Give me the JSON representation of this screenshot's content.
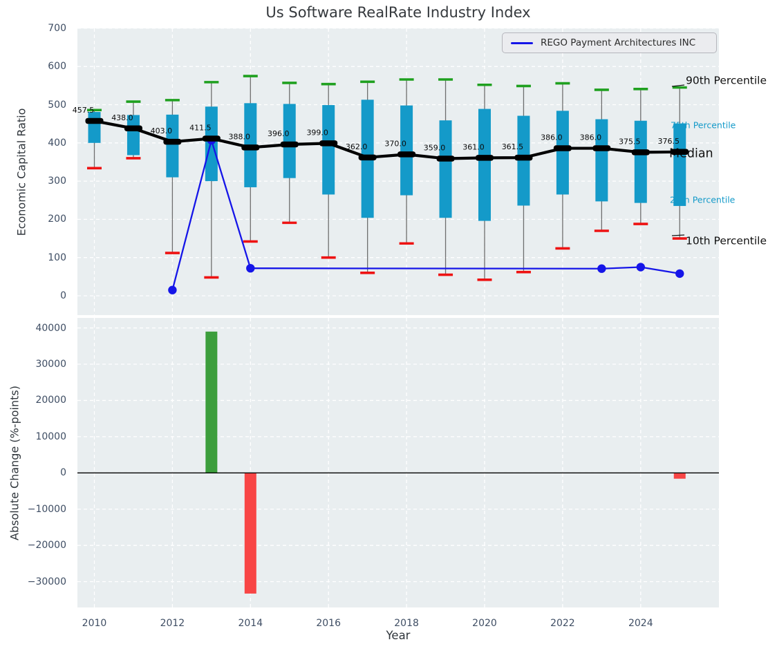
{
  "title": "Us Software RealRate Industry Index",
  "legend": {
    "label": "REGO Payment Architectures INC"
  },
  "colors": {
    "box": "#149ac9",
    "cap_high": "#1fa01f",
    "cap_low": "#ee1212",
    "whisker": "#6e6e6e",
    "median_line": "#000000",
    "company_line": "#1515e8",
    "bar_positive": "#3c9e3c",
    "bar_negative": "#f84545",
    "panel_bg": "#e9eef0",
    "grid": "#ffffff",
    "tick_text": "#3e4d63",
    "dark_text": "#111111",
    "zero_line": "#000000"
  },
  "chart_data": [
    {
      "type": "box",
      "title": "Us Software RealRate Industry Index",
      "ylabel": "Economic Capital Ratio",
      "ylim": [
        -50,
        700
      ],
      "ytick_labels": [
        "0",
        "100",
        "200",
        "300",
        "400",
        "500",
        "600",
        "700"
      ],
      "yticks": [
        0,
        100,
        200,
        300,
        400,
        500,
        600,
        700
      ],
      "xticks": [
        2010,
        2012,
        2014,
        2016,
        2018,
        2020,
        2022,
        2024
      ],
      "xtick_labels": [
        "2010",
        "2012",
        "2014",
        "2016",
        "2018",
        "2020",
        "2022",
        "2024"
      ],
      "grid": true,
      "years": [
        2010,
        2011,
        2012,
        2013,
        2014,
        2015,
        2016,
        2017,
        2018,
        2019,
        2020,
        2021,
        2022,
        2023,
        2024,
        2025
      ],
      "p90": [
        486,
        508,
        512,
        559,
        575,
        557,
        554,
        560,
        566,
        566,
        552,
        549,
        556,
        539,
        541,
        545
      ],
      "p75": [
        481,
        473,
        474,
        495,
        504,
        502,
        499,
        513,
        498,
        459,
        489,
        471,
        484,
        462,
        458,
        451
      ],
      "median": [
        457.5,
        438.0,
        403.0,
        411.5,
        388.0,
        396.0,
        399.0,
        362.0,
        370.0,
        359.0,
        361.0,
        361.5,
        386.0,
        386.0,
        375.5,
        376.5
      ],
      "p25": [
        400,
        368,
        310,
        300,
        284,
        308,
        265,
        204,
        263,
        204,
        196,
        236,
        265,
        247,
        243,
        235
      ],
      "p10": [
        334,
        360,
        112,
        48,
        142,
        191,
        100,
        60,
        137,
        55,
        42,
        62,
        124,
        170,
        188,
        150
      ],
      "median_labels": [
        "457.5",
        "438.0",
        "403.0",
        "411.5",
        "388.0",
        "396.0",
        "399.0",
        "362.0",
        "370.0",
        "359.0",
        "361.0",
        "361.5",
        "386.0",
        "386.0",
        "375.5",
        "376.5"
      ],
      "line_series": {
        "name": "REGO Payment Architectures INC",
        "x": [
          2012,
          2013,
          2014,
          2023,
          2024,
          2025
        ],
        "y": [
          15,
          407,
          72,
          71,
          75,
          58
        ]
      },
      "annotations": [
        "90th Percentile",
        "75th Percentile",
        "Median",
        "25th Percentile",
        "10th Percentile"
      ],
      "legend_position": "upper right"
    },
    {
      "type": "bar",
      "ylabel": "Absolute Change (%-points)",
      "xlabel": "Year",
      "ylim": [
        -37500,
        42800
      ],
      "ytick_labels": [
        "−30000",
        "−20000",
        "−10000",
        "0",
        "10000",
        "20000",
        "30000",
        "40000"
      ],
      "yticks": [
        -30000,
        -20000,
        -10000,
        0,
        10000,
        20000,
        30000,
        40000
      ],
      "xticks": [
        2010,
        2012,
        2014,
        2016,
        2018,
        2020,
        2022,
        2024
      ],
      "xtick_labels": [
        "2010",
        "2012",
        "2014",
        "2016",
        "2018",
        "2020",
        "2022",
        "2024"
      ],
      "grid": true,
      "zero_line": 0,
      "bars": [
        {
          "x": 2013,
          "value": 39000,
          "direction": "up"
        },
        {
          "x": 2014,
          "value": -33300,
          "direction": "down"
        },
        {
          "x": 2025,
          "value": -1600,
          "direction": "down"
        }
      ]
    }
  ]
}
